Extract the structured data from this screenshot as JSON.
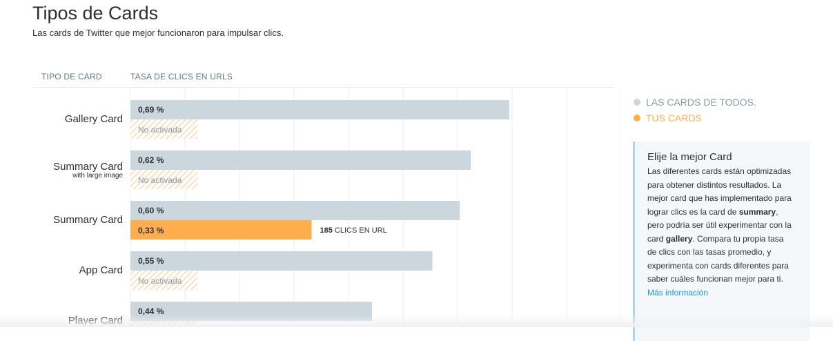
{
  "header": {
    "title": "Tipos de Cards",
    "subtitle": "Las cards de Twitter que mejor funcionaron para impulsar clics."
  },
  "columns": {
    "card_type": "TIPO DE CARD",
    "url_ctr": "TASA DE CLICS EN URLS"
  },
  "legend": {
    "all_cards": "LAS CARDS DE TODOS.",
    "your_cards": "TUS CARDS",
    "all_color": "#ccd6dd",
    "yours_color": "#ffad4d"
  },
  "info_box": {
    "title": "Elije la mejor Card",
    "intro": "Las diferentes cards están optimizadas para obtener distintos resultados. La mejor card que has implementado para lograr clics es la card de ",
    "bold1": "summary",
    "mid": ", pero podría ser útil experimentar con la card ",
    "bold2": "gallery",
    "outro": ". Compara tu propia tasa de clics con las tasas promedio, y experimenta con cards diferentes para saber cuáles funcionan mejor para ti.",
    "link": "Más información"
  },
  "chart_data": {
    "type": "bar",
    "orientation": "horizontal",
    "categories": [
      "Gallery Card",
      "Summary Card",
      "Summary Card",
      "App Card",
      "Player Card"
    ],
    "category_sublabels": [
      "",
      "with large image",
      "",
      "",
      ""
    ],
    "xlim": [
      0,
      0.88
    ],
    "grid": true,
    "series": [
      {
        "name": "LAS CARDS DE TODOS.",
        "values": [
          0.69,
          0.62,
          0.6,
          0.55,
          0.44
        ],
        "labels": [
          "0,69 %",
          "0,62 %",
          "0,60 %",
          "0,55 %",
          "0,44 %"
        ]
      },
      {
        "name": "TUS CARDS",
        "values": [
          null,
          null,
          0.33,
          null,
          null
        ],
        "labels": [
          "No activada",
          "No activada",
          "0,33 %",
          "No activada",
          ""
        ]
      }
    ],
    "annotations": [
      {
        "category_index": 2,
        "count": "185",
        "text": "CLICS EN URL"
      }
    ]
  }
}
